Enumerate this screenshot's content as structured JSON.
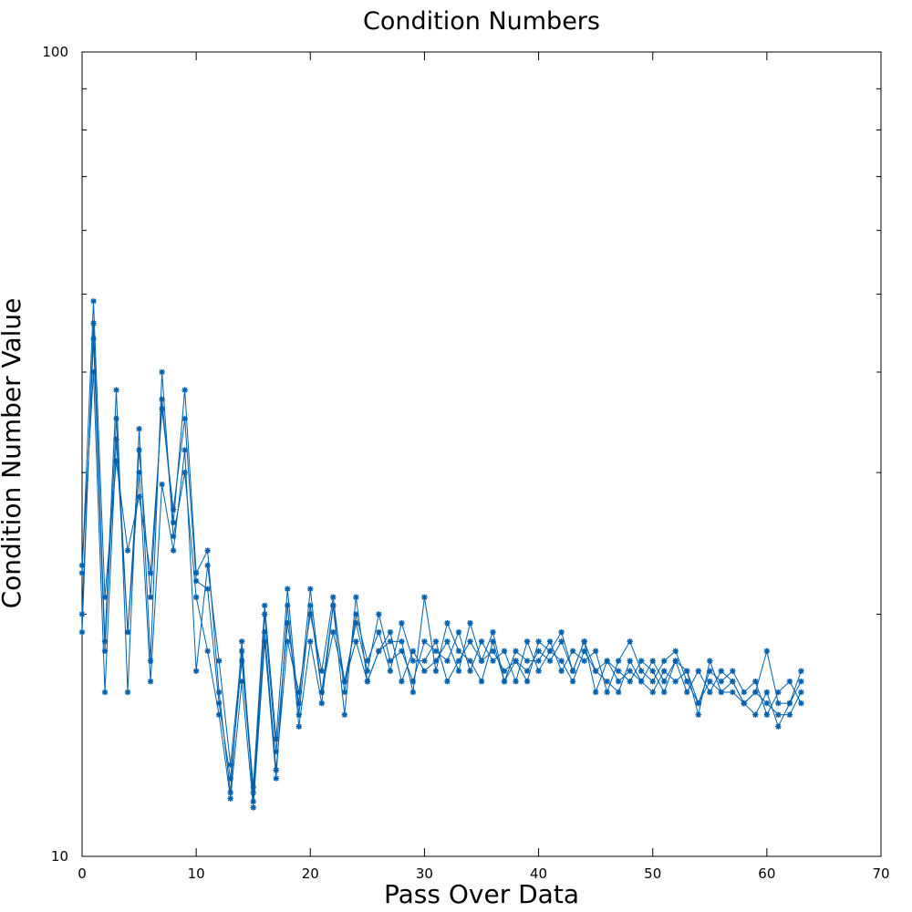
{
  "chart_data": {
    "type": "line",
    "title": "Condition Numbers",
    "xlabel": "Pass Over Data",
    "ylabel": "Condition Number Value",
    "xlim": [
      0,
      70
    ],
    "ylim": [
      10,
      100
    ],
    "yscale": "log",
    "grid": false,
    "legend": "none",
    "x_ticks": [
      0,
      10,
      20,
      30,
      40,
      50,
      60,
      70
    ],
    "y_ticks": [
      10,
      100
    ],
    "series_color": "#0060ad",
    "series": [
      {
        "values": [
          19.0,
          46.0,
          18.5,
          38.0,
          16.0,
          34.0,
          17.5,
          40.0,
          25.0,
          30.0,
          21.0,
          18.0,
          15.0,
          11.8,
          16.5,
          11.5,
          18.5,
          12.5,
          20.5,
          14.5,
          18.5,
          15.5,
          20.5,
          15.0,
          21.0,
          16.5,
          18.0,
          19.0,
          16.5,
          18.0,
          17.0,
          17.5,
          18.5,
          17.0,
          19.5,
          17.5,
          18.0,
          17.0,
          17.5,
          16.5,
          18.5,
          18.0,
          17.5,
          16.5,
          18.0,
          17.0,
          16.5,
          16.0,
          17.5,
          16.5,
          16.0,
          17.0,
          16.5,
          17.0,
          15.0,
          17.5,
          16.0,
          16.5,
          15.5,
          15.0,
          16.0,
          14.5,
          15.5,
          16.5
        ]
      },
      {
        "values": [
          22.5,
          49.0,
          21.0,
          31.0,
          24.0,
          28.0,
          22.5,
          36.0,
          27.0,
          35.0,
          22.0,
          21.5,
          15.5,
          12.5,
          17.5,
          12.0,
          20.0,
          13.5,
          19.5,
          15.5,
          21.5,
          16.0,
          19.0,
          16.5,
          19.5,
          17.0,
          20.0,
          17.5,
          18.0,
          16.5,
          18.5,
          18.0,
          17.5,
          19.0,
          17.0,
          18.5,
          17.5,
          18.0,
          16.5,
          18.5,
          17.0,
          18.0,
          19.0,
          17.0,
          18.5,
          16.0,
          17.5,
          17.0,
          16.5,
          17.5,
          17.0,
          16.0,
          17.5,
          17.0,
          15.5,
          17.0,
          16.5,
          17.0,
          16.0,
          16.5,
          15.0,
          16.0,
          16.5,
          15.5
        ]
      },
      {
        "values": [
          20.0,
          44.0,
          18.0,
          35.0,
          19.0,
          32.0,
          21.0,
          37.0,
          26.0,
          38.0,
          22.5,
          24.0,
          16.0,
          12.0,
          18.5,
          11.7,
          19.0,
          12.8,
          18.5,
          16.0,
          20.0,
          17.0,
          21.0,
          16.0,
          20.0,
          17.5,
          19.0,
          17.0,
          19.5,
          17.5,
          17.5,
          18.5,
          16.5,
          17.5,
          18.5,
          17.5,
          19.0,
          16.5,
          17.5,
          17.0,
          18.0,
          17.5,
          18.5,
          17.0,
          18.5,
          17.0,
          17.5,
          16.5,
          17.0,
          16.5,
          17.5,
          16.5,
          17.5,
          16.0,
          17.0,
          16.0,
          17.0,
          16.5,
          15.5,
          16.0,
          15.5,
          15.0,
          15.0,
          16.0
        ]
      },
      {
        "values": [
          23.0,
          40.0,
          16.0,
          33.0,
          19.0,
          30.0,
          16.5,
          29.0,
          24.0,
          32.0,
          17.0,
          23.0,
          17.5,
          13.0,
          18.0,
          12.2,
          20.5,
          14.0,
          21.5,
          15.0,
          20.5,
          16.0,
          20.5,
          16.5,
          18.5,
          16.5,
          18.0,
          18.5,
          18.5,
          16.0,
          21.0,
          17.0,
          19.5,
          18.0,
          17.5,
          16.5,
          18.5,
          16.5,
          18.0,
          17.5,
          17.5,
          18.5,
          17.0,
          18.0,
          17.5,
          18.0,
          16.0,
          17.5,
          18.5,
          17.0,
          16.5,
          17.5,
          18.0,
          16.5,
          15.5,
          16.5,
          16.0,
          16.0,
          15.5,
          16.0,
          18.0,
          15.5,
          15.5,
          17.0
        ]
      }
    ]
  }
}
